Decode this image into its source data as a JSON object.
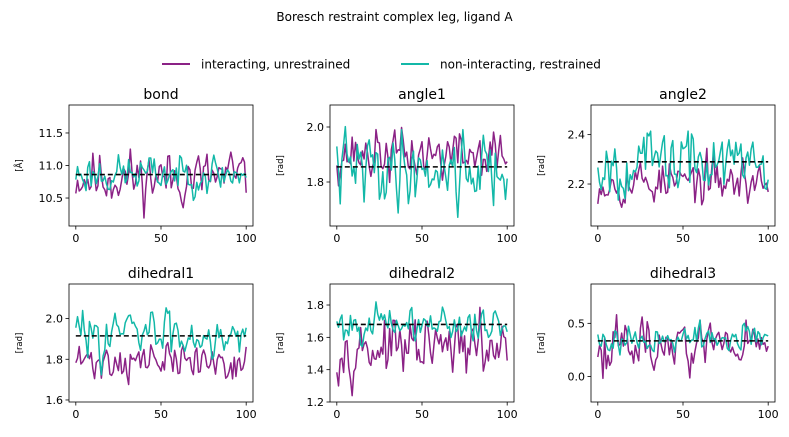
{
  "figure": {
    "title": "Boresch restraint complex leg, ligand A"
  },
  "colors": {
    "interacting": "#8b2286",
    "noninteracting": "#13b8a8",
    "mean_line": "#000000"
  },
  "legend": {
    "placement": "top-center",
    "entries": [
      "interacting, unrestrained",
      "non-interacting, restrained"
    ]
  },
  "chart_data": [
    {
      "type": "line",
      "title": "bond",
      "ylabel": "[Å]",
      "xlim": [
        -4,
        104
      ],
      "ylim": [
        10.07,
        11.93
      ],
      "xticks": [
        0,
        50,
        100
      ],
      "yticks": [
        10.5,
        11.0,
        11.5
      ],
      "ytick_labels": [
        "10.5",
        "11.0",
        "11.5"
      ],
      "mean": 10.86,
      "series": [
        {
          "name": "interacting, unrestrained",
          "base": 10.82,
          "amp": 0.32,
          "seed": 11
        },
        {
          "name": "non-interacting, restrained",
          "base": 10.87,
          "amp": 0.22,
          "seed": 23
        }
      ]
    },
    {
      "type": "line",
      "title": "angle1",
      "ylabel": "[rad]",
      "xlim": [
        -4,
        104
      ],
      "ylim": [
        1.64,
        2.08
      ],
      "xticks": [
        0,
        50,
        100
      ],
      "yticks": [
        1.8,
        2.0
      ],
      "ytick_labels": [
        "1.8",
        "2.0"
      ],
      "mean": 1.855,
      "series": [
        {
          "name": "interacting, unrestrained",
          "base": 1.9,
          "amp": 0.07,
          "seed": 37
        },
        {
          "name": "non-interacting, restrained",
          "base": 1.85,
          "amp": 0.1,
          "seed": 41
        }
      ]
    },
    {
      "type": "line",
      "title": "angle2",
      "ylabel": "[rad]",
      "xlim": [
        -4,
        104
      ],
      "ylim": [
        2.03,
        2.52
      ],
      "xticks": [
        0,
        50,
        100
      ],
      "yticks": [
        2.2,
        2.4
      ],
      "ytick_labels": [
        "2.2",
        "2.4"
      ],
      "mean": 2.29,
      "series": [
        {
          "name": "interacting, unrestrained",
          "base": 2.21,
          "amp": 0.07,
          "seed": 53
        },
        {
          "name": "non-interacting, restrained",
          "base": 2.29,
          "amp": 0.1,
          "seed": 67
        }
      ]
    },
    {
      "type": "line",
      "title": "dihedral1",
      "ylabel": "[rad]",
      "xlim": [
        -4,
        104
      ],
      "ylim": [
        1.59,
        2.17
      ],
      "xticks": [
        0,
        50,
        100
      ],
      "yticks": [
        1.6,
        1.8,
        2.0
      ],
      "ytick_labels": [
        "1.6",
        "1.8",
        "2.0"
      ],
      "mean": 1.915,
      "series": [
        {
          "name": "interacting, unrestrained",
          "base": 1.79,
          "amp": 0.07,
          "seed": 71
        },
        {
          "name": "non-interacting, restrained",
          "base": 1.93,
          "amp": 0.09,
          "seed": 83
        }
      ]
    },
    {
      "type": "line",
      "title": "dihedral2",
      "ylabel": "[rad]",
      "xlim": [
        -4,
        104
      ],
      "ylim": [
        1.2,
        1.93
      ],
      "xticks": [
        0,
        50,
        100
      ],
      "yticks": [
        1.2,
        1.4,
        1.6,
        1.8
      ],
      "ytick_labels": [
        "1.2",
        "1.4",
        "1.6",
        "1.8"
      ],
      "mean": 1.68,
      "series": [
        {
          "name": "interacting, unrestrained",
          "base": 1.53,
          "amp": 0.13,
          "seed": 97
        },
        {
          "name": "non-interacting, restrained",
          "base": 1.68,
          "amp": 0.08,
          "seed": 101
        }
      ]
    },
    {
      "type": "line",
      "title": "dihedral3",
      "ylabel": "[rad]",
      "xlim": [
        -4,
        104
      ],
      "ylim": [
        -0.24,
        0.87
      ],
      "xticks": [
        0,
        50,
        100
      ],
      "yticks": [
        0.0,
        0.5
      ],
      "ytick_labels": [
        "0.0",
        "0.5"
      ],
      "mean": 0.335,
      "series": [
        {
          "name": "interacting, unrestrained",
          "base": 0.3,
          "amp": 0.19,
          "seed": 113
        },
        {
          "name": "non-interacting, restrained",
          "base": 0.35,
          "amp": 0.1,
          "seed": 127
        }
      ]
    }
  ]
}
